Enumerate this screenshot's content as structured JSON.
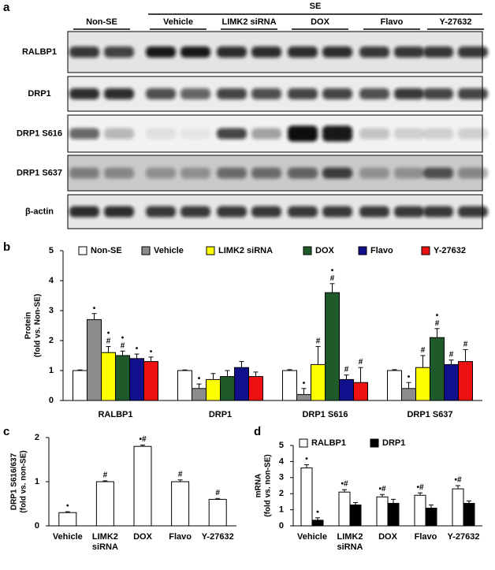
{
  "figure": {
    "panel_a": {
      "letter": "a",
      "header": "SE",
      "groups": [
        "Non-SE",
        "Vehicle",
        "LIMK2 siRNA",
        "DOX",
        "Flavo",
        "Y-27632"
      ],
      "rows": [
        "RALBP1",
        "DRP1",
        "DRP1 S616",
        "DRP1 S637",
        "β-actin"
      ]
    }
  },
  "chart_data": [
    {
      "letter": "b",
      "type": "bar",
      "ylabel": [
        "Protein",
        "(fold vs. Non-SE)"
      ],
      "categories": [
        "RALBP1",
        "DRP1",
        "DRP1 S616",
        "DRP1 S637"
      ],
      "annotation_stack": true,
      "series": [
        {
          "name": "Non-SE",
          "color": "#ffffff",
          "values": [
            1,
            1,
            1,
            1
          ],
          "errors": [
            0.02,
            0.02,
            0.03,
            0.03
          ],
          "annotations": [
            null,
            null,
            null,
            null
          ]
        },
        {
          "name": "Vehicle",
          "color": "#8c8c8c",
          "values": [
            2.7,
            0.4,
            0.2,
            0.4
          ],
          "errors": [
            0.2,
            0.15,
            0.2,
            0.2
          ],
          "annotations": [
            "•",
            "•",
            "•",
            "•"
          ]
        },
        {
          "name": "LIMK2 siRNA",
          "color": "#ffff00",
          "values": [
            1.6,
            0.7,
            1.2,
            1.1
          ],
          "errors": [
            0.2,
            0.2,
            0.6,
            0.4
          ],
          "annotations": [
            "•#",
            null,
            "#",
            "#"
          ]
        },
        {
          "name": "DOX",
          "color": "#1f5a2a",
          "values": [
            1.5,
            0.8,
            3.6,
            2.1
          ],
          "errors": [
            0.15,
            0.2,
            0.3,
            0.3
          ],
          "annotations": [
            "•#",
            null,
            "•#",
            "•#"
          ]
        },
        {
          "name": "Flavo",
          "color": "#10108c",
          "values": [
            1.4,
            1.1,
            0.7,
            1.2
          ],
          "errors": [
            0.15,
            0.2,
            0.15,
            0.15
          ],
          "annotations": [
            "•",
            null,
            "#",
            "#"
          ]
        },
        {
          "name": "Y-27632",
          "color": "#ee1111",
          "values": [
            1.3,
            0.8,
            0.6,
            1.3
          ],
          "errors": [
            0.15,
            0.15,
            0.5,
            0.4
          ],
          "annotations": [
            "•",
            null,
            "#",
            "#"
          ]
        }
      ],
      "ylim": [
        0,
        5
      ],
      "yticks": [
        0,
        1,
        2,
        3,
        4,
        5
      ]
    },
    {
      "letter": "c",
      "type": "bar",
      "ylabel": [
        "DRP1 S616/637",
        "(fold vs. non-SE)"
      ],
      "categories": [
        "Vehicle",
        "LIMK2 siRNA",
        "DOX",
        "Flavo",
        "Y-27632"
      ],
      "wrap_labels": true,
      "series": [
        {
          "color": "#ffffff",
          "values": [
            0.3,
            1.0,
            1.8,
            1.0,
            0.6
          ],
          "errors": [
            0.02,
            0.02,
            0.03,
            0.04,
            0.02
          ],
          "annotations": [
            "•",
            "#",
            "•#",
            "#",
            "#"
          ]
        }
      ],
      "ylim": [
        0,
        2
      ],
      "yticks": [
        0,
        1,
        2
      ]
    },
    {
      "letter": "d",
      "type": "bar",
      "ylabel": [
        "mRNA",
        "(fold vs. non-SE)"
      ],
      "categories": [
        "Vehicle",
        "LIMK2 siRNA",
        "DOX",
        "Flavo",
        "Y-27632"
      ],
      "wrap_labels": true,
      "series": [
        {
          "name": "RALBP1",
          "color": "#ffffff",
          "values": [
            3.6,
            2.1,
            1.8,
            1.9,
            2.3
          ],
          "errors": [
            0.2,
            0.15,
            0.15,
            0.15,
            0.2
          ],
          "annotations": [
            "•",
            "•#",
            "•#",
            "•#",
            "•#"
          ]
        },
        {
          "name": "DRP1",
          "color": "#000000",
          "values": [
            0.35,
            1.3,
            1.4,
            1.1,
            1.4
          ],
          "errors": [
            0.15,
            0.15,
            0.25,
            0.2,
            0.15
          ],
          "annotations": [
            "•",
            null,
            null,
            null,
            null
          ]
        }
      ],
      "ylim": [
        0,
        5
      ],
      "yticks": [
        0,
        1,
        2,
        3,
        4,
        5
      ]
    }
  ]
}
